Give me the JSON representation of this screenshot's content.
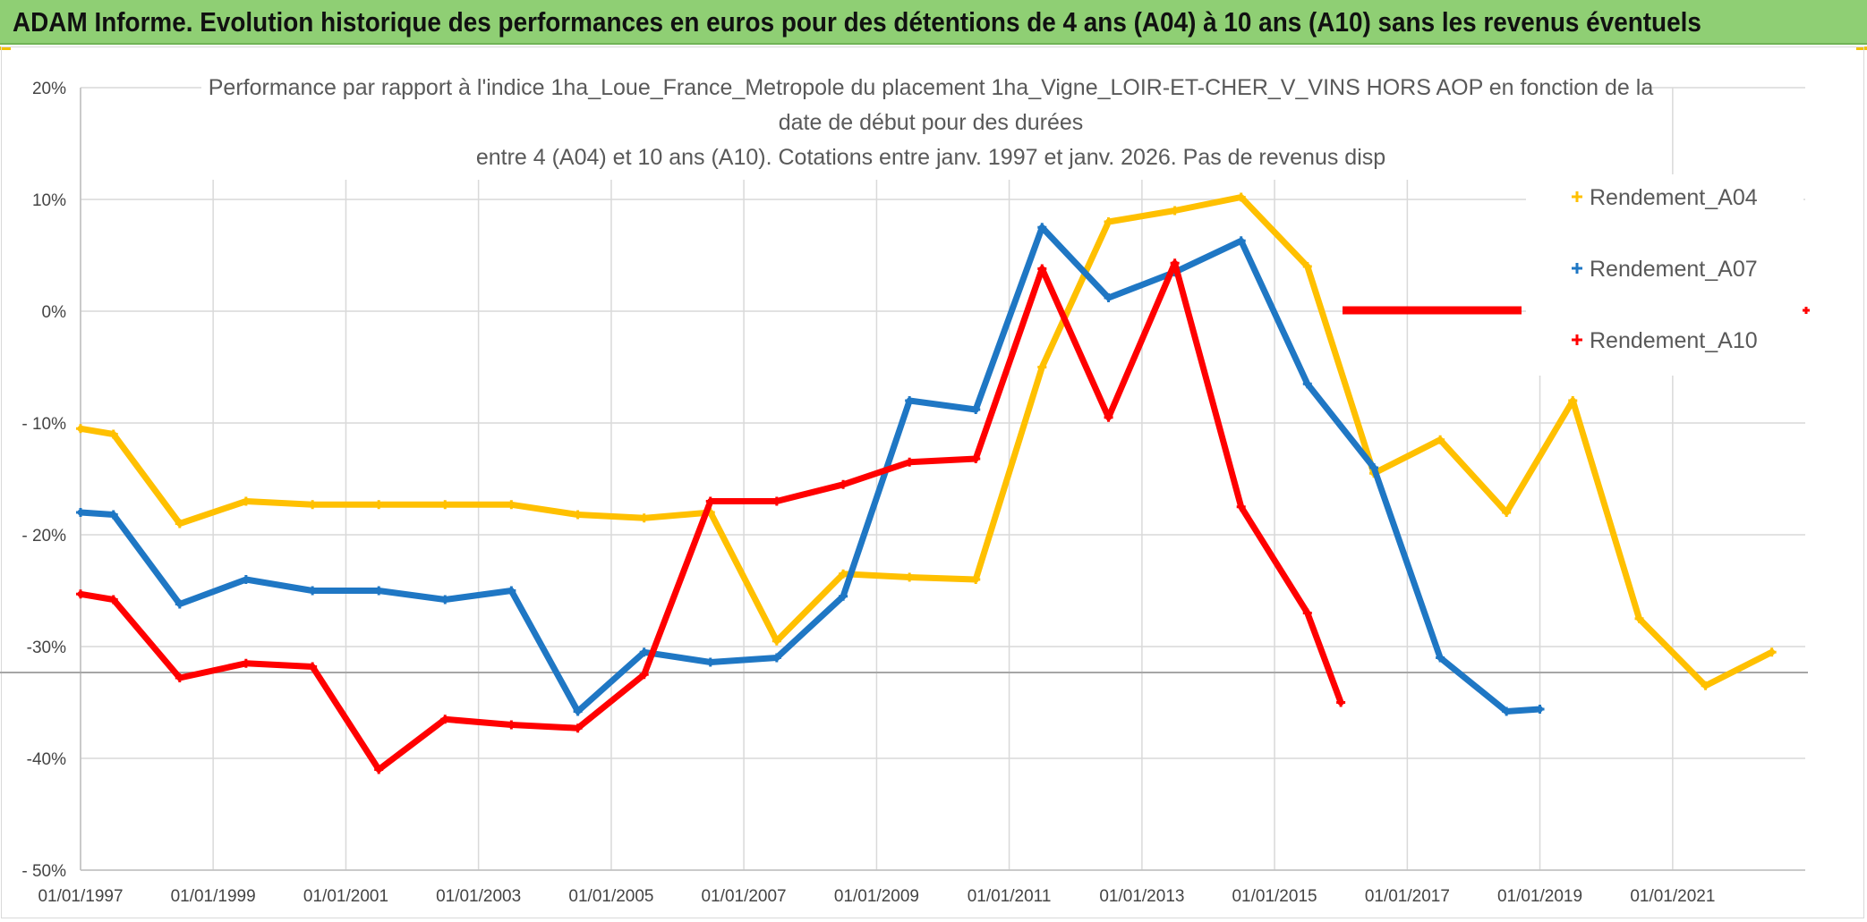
{
  "banner": {
    "title": "ADAM Informe. Evolution historique des performances en euros pour des détentions de 4 ans (A04) à 10 ans (A10) sans les revenus éventuels",
    "color": "#8fcf74"
  },
  "chart_data": {
    "type": "line",
    "title_lines": [
      "Performance par rapport à l'indice 1ha_Loue_France_Metropole  du placement 1ha_Vigne_LOIR-ET-CHER_V_VINS HORS AOP en fonction de la",
      "date de début pour des durées",
      "entre 4 (A04) et 10 ans (A10). Cotations entre janv. 1997 et janv. 2026. Pas de revenus disp"
    ],
    "x_scale": "date",
    "xlim": [
      "1997-01-01",
      "2023-01-01"
    ],
    "x_tick_labels": [
      "01/01/1997",
      "01/01/1999",
      "01/01/2001",
      "01/01/2003",
      "01/01/2005",
      "01/01/2007",
      "01/01/2009",
      "01/01/2011",
      "01/01/2013",
      "01/01/2015",
      "01/01/2017",
      "01/01/2019",
      "01/01/2021"
    ],
    "x_ticks": [
      "1997-01-01",
      "1999-01-01",
      "2001-01-01",
      "2003-01-01",
      "2005-01-01",
      "2007-01-01",
      "2009-01-01",
      "2011-01-01",
      "2013-01-01",
      "2015-01-01",
      "2017-01-01",
      "2019-01-01",
      "2021-01-01"
    ],
    "ylim": [
      -50,
      20
    ],
    "y_ticks": [
      20,
      10,
      0,
      -10,
      -20,
      -30,
      -40,
      -50
    ],
    "y_tick_labels": [
      "20%",
      "10%",
      "0%",
      "- 10%",
      "- 20%",
      "-30%",
      "-40%",
      "- 50%"
    ],
    "grid": true,
    "legend_position": "right",
    "series": [
      {
        "name": "Rendement_A04",
        "color": "#ffc000",
        "points": [
          [
            "1997-01-01",
            -10.5
          ],
          [
            "1997-07-01",
            -11.0
          ],
          [
            "1998-07-01",
            -19.0
          ],
          [
            "1999-07-01",
            -17.0
          ],
          [
            "2000-07-01",
            -17.3
          ],
          [
            "2001-07-01",
            -17.3
          ],
          [
            "2002-07-01",
            -17.3
          ],
          [
            "2003-07-01",
            -17.3
          ],
          [
            "2004-07-01",
            -18.2
          ],
          [
            "2005-07-01",
            -18.5
          ],
          [
            "2006-07-01",
            -18.0
          ],
          [
            "2007-07-01",
            -29.5
          ],
          [
            "2008-07-01",
            -23.5
          ],
          [
            "2009-07-01",
            -23.8
          ],
          [
            "2010-07-01",
            -24.0
          ],
          [
            "2011-07-01",
            -5.0
          ],
          [
            "2012-07-01",
            8.0
          ],
          [
            "2013-07-01",
            9.0
          ],
          [
            "2014-07-01",
            10.2
          ],
          [
            "2015-07-01",
            4.0
          ],
          [
            "2016-07-01",
            -14.5
          ],
          [
            "2017-07-01",
            -11.5
          ],
          [
            "2018-07-01",
            -18.0
          ],
          [
            "2019-07-01",
            -8.0
          ],
          [
            "2020-07-01",
            -27.5
          ],
          [
            "2021-07-01",
            -33.5
          ],
          [
            "2022-07-01",
            -30.5
          ]
        ]
      },
      {
        "name": "Rendement_A07",
        "color": "#1f77c4",
        "points": [
          [
            "1997-01-01",
            -18.0
          ],
          [
            "1997-07-01",
            -18.2
          ],
          [
            "1998-07-01",
            -26.2
          ],
          [
            "1999-07-01",
            -24.0
          ],
          [
            "2000-07-01",
            -25.0
          ],
          [
            "2001-07-01",
            -25.0
          ],
          [
            "2002-07-01",
            -25.8
          ],
          [
            "2003-07-01",
            -25.0
          ],
          [
            "2004-07-01",
            -35.8
          ],
          [
            "2005-07-01",
            -30.5
          ],
          [
            "2006-07-01",
            -31.4
          ],
          [
            "2007-07-01",
            -31.0
          ],
          [
            "2008-07-01",
            -25.5
          ],
          [
            "2009-07-01",
            -8.0
          ],
          [
            "2010-07-01",
            -8.8
          ],
          [
            "2011-07-01",
            7.5
          ],
          [
            "2012-07-01",
            1.2
          ],
          [
            "2013-07-01",
            3.5
          ],
          [
            "2014-07-01",
            6.3
          ],
          [
            "2015-07-01",
            -6.5
          ],
          [
            "2016-07-01",
            -14.0
          ],
          [
            "2017-07-01",
            -31.0
          ],
          [
            "2018-07-01",
            -35.8
          ],
          [
            "2019-01-01",
            -35.6
          ]
        ]
      },
      {
        "name": "Rendement_A10",
        "color": "#ff0000",
        "points": [
          [
            "1997-01-01",
            -25.3
          ],
          [
            "1997-07-01",
            -25.8
          ],
          [
            "1998-07-01",
            -32.8
          ],
          [
            "1999-07-01",
            -31.5
          ],
          [
            "2000-07-01",
            -31.8
          ],
          [
            "2001-07-01",
            -41.0
          ],
          [
            "2002-07-01",
            -36.5
          ],
          [
            "2003-07-01",
            -37.0
          ],
          [
            "2004-07-01",
            -37.3
          ],
          [
            "2005-07-01",
            -32.5
          ],
          [
            "2006-07-01",
            -17.0
          ],
          [
            "2007-07-01",
            -17.0
          ],
          [
            "2008-07-01",
            -15.5
          ],
          [
            "2009-07-01",
            -13.5
          ],
          [
            "2010-07-01",
            -13.2
          ],
          [
            "2011-07-01",
            3.8
          ],
          [
            "2012-07-01",
            -9.5
          ],
          [
            "2013-07-01",
            4.3
          ],
          [
            "2014-07-01",
            -17.5
          ],
          [
            "2015-07-01",
            -27.0
          ],
          [
            "2016-01-01",
            -35.0
          ]
        ]
      }
    ]
  }
}
